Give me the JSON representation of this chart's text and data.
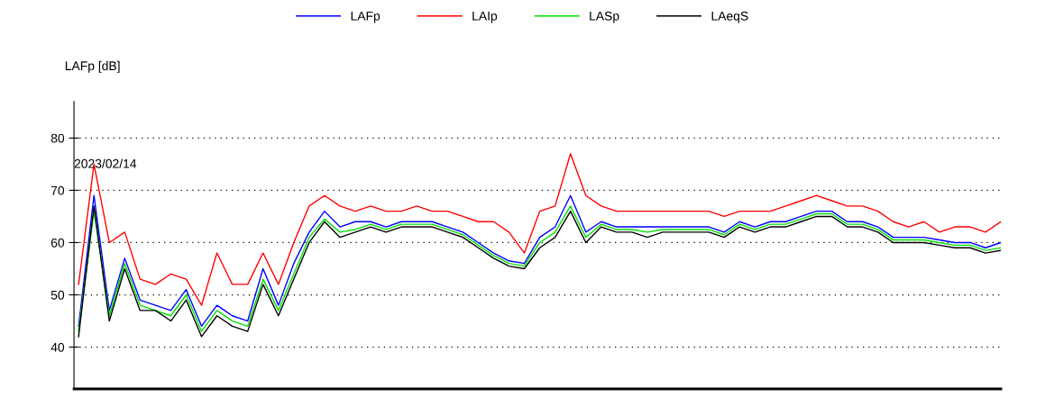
{
  "chart_data": {
    "type": "line",
    "ylabel": "LAFp [dB]",
    "annotations": [
      "2023/02/14"
    ],
    "categories": [
      null,
      null,
      null,
      null,
      null,
      null,
      null,
      null,
      null,
      null,
      null,
      null,
      null,
      null,
      null,
      null,
      null,
      null,
      null,
      null,
      null,
      null,
      null,
      null,
      null,
      null,
      null,
      null,
      null,
      null,
      null,
      null,
      null,
      null,
      null,
      null,
      null,
      null,
      null,
      null,
      null,
      null,
      null,
      null,
      null,
      null,
      null,
      null,
      null,
      null,
      null,
      null,
      null,
      null,
      null,
      null,
      null,
      null,
      null,
      null,
      null
    ],
    "ylim": [
      32,
      87
    ],
    "yticks": [
      40,
      50,
      60,
      70,
      80
    ],
    "tick_labels": "y",
    "grid": "y",
    "legend": "top",
    "marker": "none",
    "line_style": "solid",
    "series": [
      {
        "name": "LAFp",
        "color": "#0000ff",
        "values": [
          44,
          69,
          47,
          57,
          49,
          48,
          47,
          51,
          44,
          48,
          46,
          45,
          55,
          48,
          56,
          62,
          66,
          63,
          64,
          64,
          63,
          64,
          64,
          64,
          63,
          62,
          60,
          58,
          56.5,
          56,
          61,
          63,
          69,
          62,
          64,
          63,
          63,
          63,
          63,
          63,
          63,
          63,
          62,
          64,
          63,
          64,
          64,
          65,
          66,
          66,
          64,
          64,
          63,
          61,
          61,
          61,
          60.5,
          60,
          60,
          59,
          60
        ]
      },
      {
        "name": "LAIp",
        "color": "#ff0000",
        "values": [
          52,
          75,
          60,
          62,
          53,
          52,
          54,
          53,
          48,
          58,
          52,
          52,
          58,
          52,
          60,
          67,
          69,
          67,
          66,
          67,
          66,
          66,
          67,
          66,
          66,
          65,
          64,
          64,
          62,
          58,
          66,
          67,
          77,
          69,
          67,
          66,
          66,
          66,
          66,
          66,
          66,
          66,
          65,
          66,
          66,
          66,
          67,
          68,
          69,
          68,
          67,
          67,
          66,
          64,
          63,
          64,
          62,
          63,
          63,
          62,
          64
        ]
      },
      {
        "name": "LASp",
        "color": "#00e000",
        "values": [
          43,
          66,
          46,
          56,
          48,
          47,
          46,
          50,
          43,
          47,
          45,
          44,
          53,
          47,
          54,
          61,
          64.5,
          62,
          62.5,
          63.5,
          62.5,
          63.5,
          63.5,
          63.5,
          62.5,
          61.5,
          59.5,
          57.5,
          56,
          55.5,
          60,
          62,
          67,
          61,
          63.5,
          62.5,
          62.5,
          62,
          62.5,
          62.5,
          62.5,
          62.5,
          61.5,
          63.5,
          62.5,
          63.5,
          63.5,
          64.5,
          65.5,
          65.5,
          63.5,
          63.5,
          62.5,
          60.5,
          60.5,
          60.5,
          60,
          59.5,
          59.5,
          58.5,
          59
        ]
      },
      {
        "name": "LAeqS",
        "color": "#000000",
        "values": [
          42,
          67,
          45,
          55,
          47,
          47,
          45,
          49,
          42,
          46,
          44,
          43,
          52,
          46,
          53,
          60,
          64,
          61,
          62,
          63,
          62,
          63,
          63,
          63,
          62,
          61,
          59,
          57,
          55.5,
          55,
          59,
          61,
          66,
          60,
          63,
          62,
          62,
          61,
          62,
          62,
          62,
          62,
          61,
          63,
          62,
          63,
          63,
          64,
          65,
          65,
          63,
          63,
          62,
          60,
          60,
          60,
          59.5,
          59,
          59,
          58,
          58.5
        ]
      }
    ]
  }
}
